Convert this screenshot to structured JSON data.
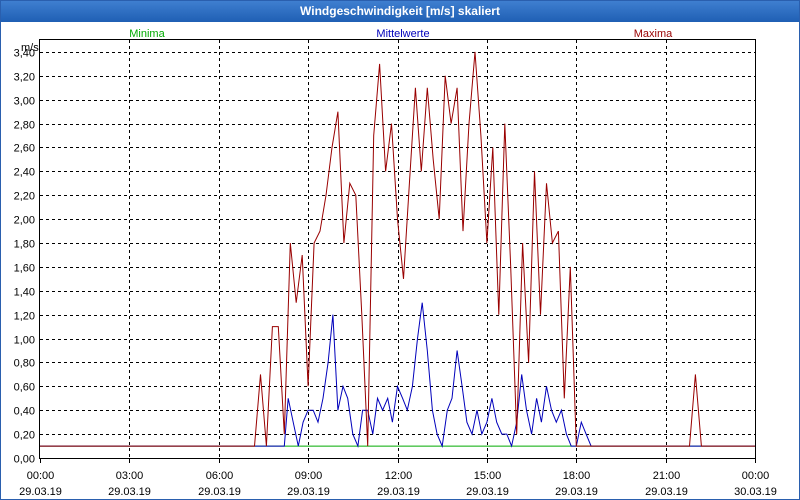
{
  "window": {
    "title": "Windgeschwindigkeit [m/s] skaliert"
  },
  "colors": {
    "min": "#00aa00",
    "mean": "#0000bb",
    "max": "#990000",
    "grid": "#000000"
  },
  "chart_data": {
    "type": "line",
    "title": "Windgeschwindigkeit [m/s] skaliert",
    "ylabel": "m/s",
    "xlabel": "",
    "ylim": [
      0,
      3.5
    ],
    "xlim_hours": [
      0,
      24
    ],
    "grid": true,
    "legend_placement": "top",
    "yticks": [
      "0,00",
      "0,20",
      "0,40",
      "0,60",
      "0,80",
      "1,00",
      "1,20",
      "1,40",
      "1,60",
      "1,80",
      "2,00",
      "2,20",
      "2,40",
      "2,60",
      "2,80",
      "3,00",
      "3,20",
      "3,40"
    ],
    "xticks": [
      {
        "time": "00:00",
        "date": "29.03.19"
      },
      {
        "time": "03:00",
        "date": "29.03.19"
      },
      {
        "time": "06:00",
        "date": "29.03.19"
      },
      {
        "time": "09:00",
        "date": "29.03.19"
      },
      {
        "time": "12:00",
        "date": "29.03.19"
      },
      {
        "time": "15:00",
        "date": "29.03.19"
      },
      {
        "time": "18:00",
        "date": "29.03.19"
      },
      {
        "time": "21:00",
        "date": "29.03.19"
      },
      {
        "time": "00:00",
        "date": "30.03.19"
      }
    ],
    "series": [
      {
        "name": "Minima",
        "hours": [
          0,
          24
        ],
        "values": [
          0.1,
          0.1
        ]
      },
      {
        "name": "Mittelwerte",
        "hours": [
          0,
          8.2,
          8.33,
          8.5,
          8.67,
          8.83,
          9.0,
          9.17,
          9.33,
          9.5,
          9.67,
          9.83,
          10.0,
          10.17,
          10.33,
          10.5,
          10.67,
          10.83,
          11.0,
          11.17,
          11.33,
          11.5,
          11.67,
          11.83,
          12.0,
          12.17,
          12.33,
          12.5,
          12.67,
          12.83,
          13.0,
          13.17,
          13.33,
          13.5,
          13.67,
          13.83,
          14.0,
          14.17,
          14.33,
          14.5,
          14.67,
          14.83,
          15.0,
          15.17,
          15.33,
          15.5,
          15.67,
          15.83,
          16.0,
          16.17,
          16.33,
          16.5,
          16.67,
          16.83,
          17.0,
          17.17,
          17.33,
          17.5,
          17.67,
          17.83,
          18.0,
          18.17,
          18.33,
          18.5,
          24
        ],
        "values": [
          0.1,
          0.1,
          0.5,
          0.3,
          0.1,
          0.3,
          0.4,
          0.4,
          0.3,
          0.5,
          0.8,
          1.2,
          0.4,
          0.6,
          0.5,
          0.2,
          0.1,
          0.4,
          0.4,
          0.2,
          0.5,
          0.4,
          0.5,
          0.3,
          0.6,
          0.5,
          0.4,
          0.6,
          1.0,
          1.3,
          0.9,
          0.4,
          0.2,
          0.1,
          0.4,
          0.5,
          0.9,
          0.6,
          0.3,
          0.2,
          0.4,
          0.2,
          0.3,
          0.5,
          0.3,
          0.2,
          0.2,
          0.1,
          0.3,
          0.7,
          0.4,
          0.2,
          0.5,
          0.3,
          0.6,
          0.4,
          0.3,
          0.4,
          0.2,
          0.1,
          0.1,
          0.3,
          0.2,
          0.1,
          0.1
        ]
      },
      {
        "name": "Maxima",
        "hours": [
          0,
          7.2,
          7.4,
          7.6,
          7.8,
          8.0,
          8.2,
          8.4,
          8.6,
          8.8,
          9.0,
          9.2,
          9.4,
          9.6,
          9.8,
          10.0,
          10.2,
          10.4,
          10.6,
          10.8,
          11.0,
          11.2,
          11.4,
          11.6,
          11.8,
          12.0,
          12.2,
          12.4,
          12.6,
          12.8,
          13.0,
          13.2,
          13.4,
          13.6,
          13.8,
          14.0,
          14.2,
          14.4,
          14.6,
          14.8,
          15.0,
          15.2,
          15.4,
          15.6,
          15.8,
          16.0,
          16.2,
          16.4,
          16.6,
          16.8,
          17.0,
          17.2,
          17.4,
          17.6,
          17.8,
          18.0,
          18.2,
          18.4,
          18.6,
          18.8,
          21.5,
          21.8,
          22.0,
          22.2,
          24
        ],
        "values": [
          0.1,
          0.1,
          0.7,
          0.1,
          1.1,
          1.1,
          0.2,
          1.8,
          1.3,
          1.7,
          0.6,
          1.8,
          1.9,
          2.2,
          2.6,
          2.9,
          1.8,
          2.3,
          2.2,
          1.2,
          0.1,
          2.7,
          3.3,
          2.4,
          2.8,
          2.0,
          1.5,
          2.3,
          3.1,
          2.4,
          3.1,
          2.5,
          2.0,
          3.2,
          2.8,
          3.1,
          1.9,
          2.8,
          3.4,
          2.7,
          1.8,
          2.6,
          1.2,
          2.8,
          1.6,
          0.2,
          1.8,
          0.8,
          2.4,
          1.2,
          2.3,
          1.8,
          1.9,
          0.5,
          1.6,
          0.1,
          0.1,
          0.1,
          0.1,
          0.1,
          0.1,
          0.1,
          0.7,
          0.1,
          0.1
        ]
      }
    ]
  }
}
